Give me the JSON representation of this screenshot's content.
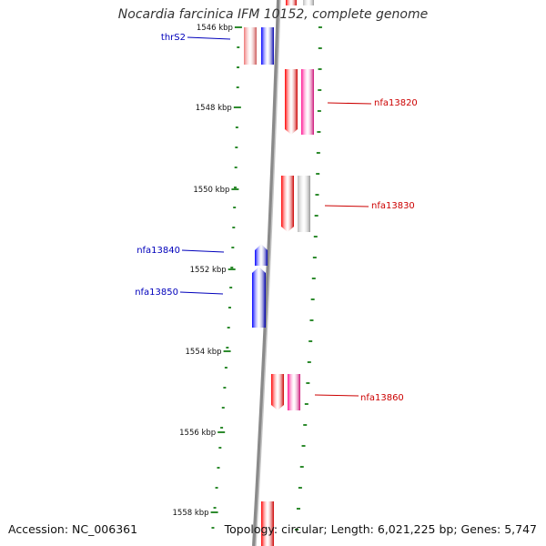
{
  "title": "Nocardia farcinica IFM 10152, complete genome",
  "accession": "Accession: NC_006361",
  "summary": "Topology: circular; Length: 6,021,225 bp; Genes: 5,747",
  "colors": {
    "tick": "#2e8b2e",
    "backbone": "#8a8a8a",
    "forward_gene": "#0000ff",
    "reverse_gene": "#ff0000",
    "reverse_label": "#cc0000",
    "forward_label": "#0000bb",
    "pink_feature": "#ff1493",
    "gray_feature": "#bbbbbb",
    "salmon_feature": "#ee7777"
  },
  "scale_labels": [
    "1546 kbp",
    "1548 kbp",
    "1550 kbp",
    "1552 kbp",
    "1554 kbp",
    "1556 kbp",
    "1558 kbp"
  ],
  "gene_labels": [
    {
      "id": "thrS2",
      "strand": "forward"
    },
    {
      "id": "nfa13820",
      "strand": "reverse"
    },
    {
      "id": "nfa13830",
      "strand": "reverse"
    },
    {
      "id": "nfa13840",
      "strand": "forward"
    },
    {
      "id": "nfa13850",
      "strand": "forward"
    },
    {
      "id": "nfa13860",
      "strand": "reverse"
    }
  ]
}
